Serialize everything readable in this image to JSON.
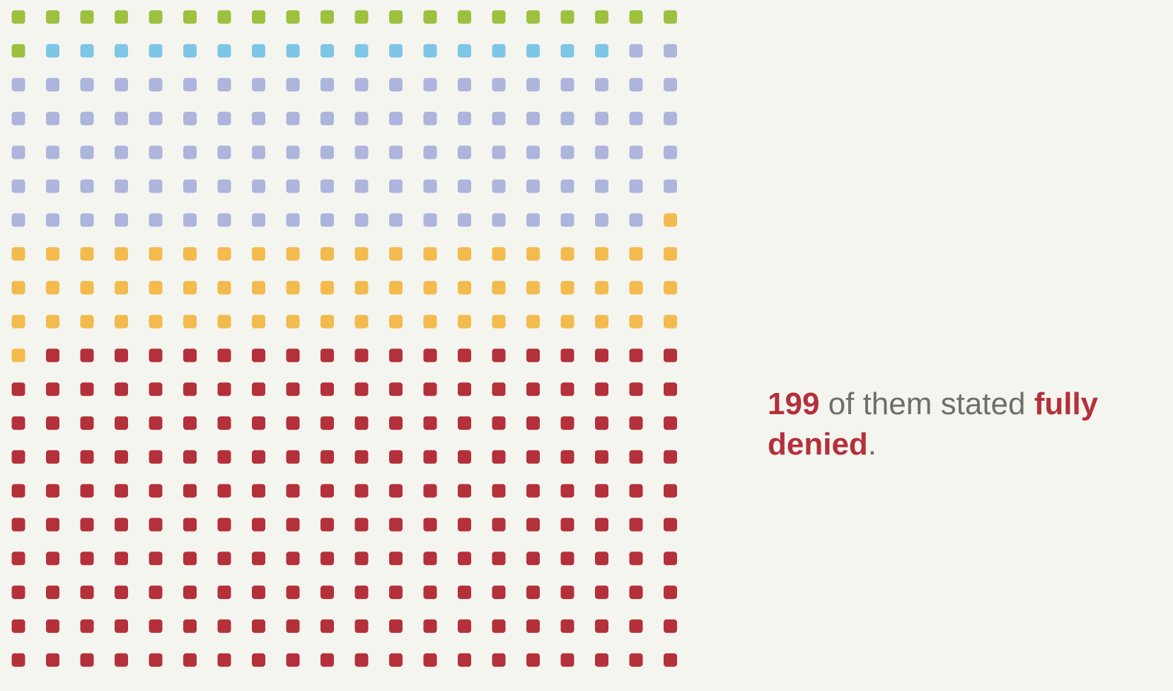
{
  "chart_data": {
    "type": "waffle",
    "rows": 20,
    "columns": 20,
    "total": 400,
    "fill_order": "row-major, left-to-right, top-to-bottom",
    "segments": [
      {
        "count": 21,
        "color": "#9dc03f"
      },
      {
        "count": 17,
        "color": "#7ec6e6"
      },
      {
        "count": 101,
        "color": "#adb5dd"
      },
      {
        "count": 62,
        "color": "#f3bb4d"
      },
      {
        "count": 199,
        "color": "#b4303a"
      }
    ]
  },
  "caption": {
    "count": "199",
    "text_middle": " of them stated ",
    "emphasis": "fully denied",
    "end": "."
  },
  "colors": {
    "background": "#f5f5f0",
    "highlight": "#b4303a",
    "text": "#6e6e6e"
  }
}
